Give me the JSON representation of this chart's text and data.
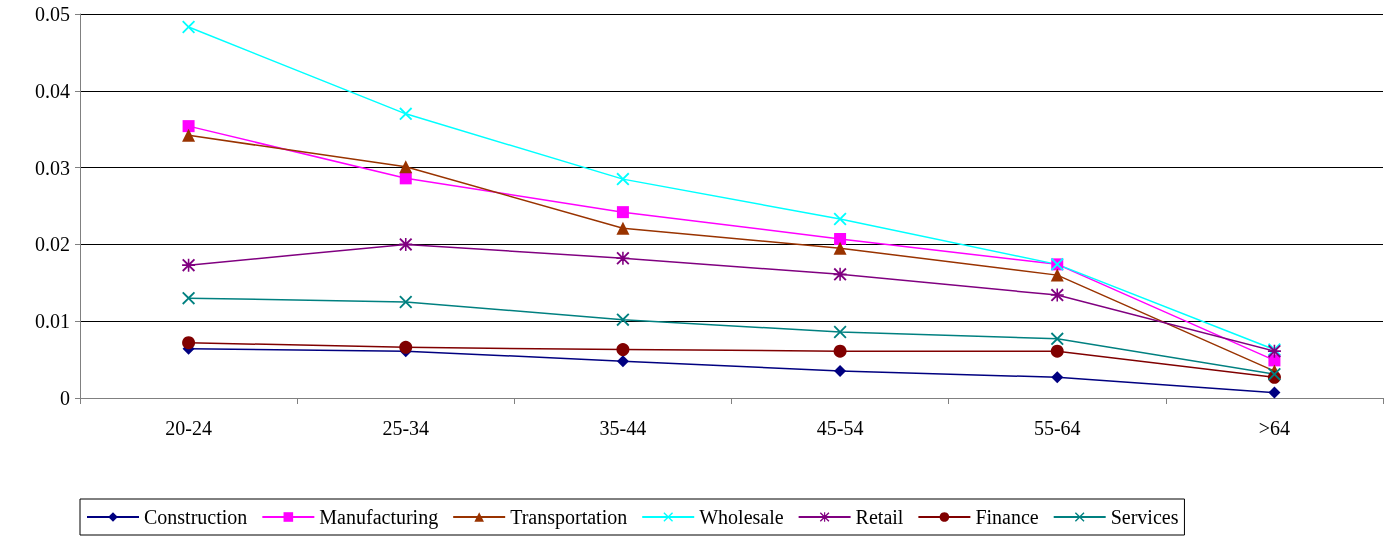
{
  "chart_data": {
    "type": "line",
    "categories": [
      "20-24",
      "25-34",
      "35-44",
      "45-54",
      "55-64",
      ">64"
    ],
    "ylim": [
      0,
      0.05
    ],
    "yticks": [
      0,
      0.01,
      0.02,
      0.03,
      0.04,
      0.05
    ],
    "grid": "y",
    "legend": "bottom",
    "line_style": "solid",
    "series": [
      {
        "name": "Construction",
        "color": "#000080",
        "marker": "diamond",
        "values": [
          0.0064,
          0.0061,
          0.0048,
          0.0035,
          0.0027,
          0.0007
        ]
      },
      {
        "name": "Manufacturing",
        "color": "#ff00ff",
        "marker": "square",
        "values": [
          0.0354,
          0.0286,
          0.0242,
          0.0207,
          0.0174,
          0.0049
        ]
      },
      {
        "name": "Transportation",
        "color": "#993300",
        "marker": "triangle",
        "values": [
          0.0342,
          0.0301,
          0.0221,
          0.0195,
          0.016,
          0.0035
        ]
      },
      {
        "name": "Wholesale",
        "color": "#00ffff",
        "marker": "cross",
        "values": [
          0.0483,
          0.037,
          0.0285,
          0.0233,
          0.0174,
          0.0063
        ]
      },
      {
        "name": "Retail",
        "color": "#800080",
        "marker": "star",
        "values": [
          0.0173,
          0.02,
          0.0182,
          0.0161,
          0.0134,
          0.0061
        ]
      },
      {
        "name": "Finance",
        "color": "#800000",
        "marker": "circle",
        "values": [
          0.0072,
          0.0066,
          0.0063,
          0.0061,
          0.0061,
          0.0027
        ]
      },
      {
        "name": "Services",
        "color": "#008080",
        "marker": "cross",
        "values": [
          0.013,
          0.0125,
          0.0102,
          0.0086,
          0.0077,
          0.0031
        ]
      }
    ]
  }
}
